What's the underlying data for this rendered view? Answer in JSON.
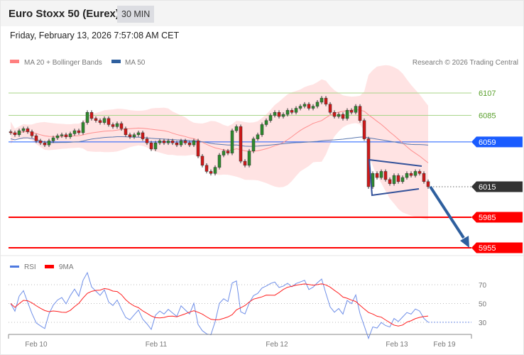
{
  "header": {
    "title": "Euro Stoxx 50 (Eurex)",
    "timeframe": "30 MIN",
    "datetime": "Friday, February 13, 2026 7:57:08 AM CET"
  },
  "legend": {
    "ma20": "MA 20 + Bollinger Bands",
    "ma50": "MA 50",
    "ma20_color": "#ff7f7f",
    "ma50_color": "#2e5f9e",
    "credit": "Research © 2026 Trading Central"
  },
  "rsi_legend": {
    "rsi": "RSI",
    "ma9": "9MA",
    "rsi_color": "#4f7ae0",
    "ma9_color": "#ff0000"
  },
  "levels": [
    {
      "value": 6107,
      "label": "6107",
      "kind": "resistance",
      "color": "#5aa02c"
    },
    {
      "value": 6085,
      "label": "6085",
      "kind": "resistance",
      "color": "#5aa02c"
    },
    {
      "value": 6059,
      "label": "6059",
      "kind": "pivot",
      "color": "#1a5cff"
    },
    {
      "value": 6015,
      "label": "6015",
      "kind": "last",
      "color": "#333333"
    },
    {
      "value": 5985,
      "label": "5985",
      "kind": "support",
      "color": "#ff0000"
    },
    {
      "value": 5955,
      "label": "5955",
      "kind": "support",
      "color": "#ff0000"
    }
  ],
  "chart_data": {
    "type": "candlestick",
    "closes": [
      6068,
      6066,
      6070,
      6072,
      6069,
      6065,
      6060,
      6058,
      6056,
      6060,
      6063,
      6065,
      6066,
      6064,
      6067,
      6070,
      6068,
      6078,
      6088,
      6082,
      6080,
      6078,
      6082,
      6076,
      6074,
      6077,
      6072,
      6066,
      6064,
      6066,
      6068,
      6062,
      6058,
      6052,
      6058,
      6060,
      6058,
      6060,
      6058,
      6056,
      6060,
      6058,
      6056,
      6060,
      6045,
      6036,
      6030,
      6028,
      6034,
      6046,
      6050,
      6048,
      6070,
      6074,
      6040,
      6036,
      6050,
      6062,
      6066,
      6076,
      6080,
      6085,
      6088,
      6084,
      6086,
      6090,
      6088,
      6092,
      6094,
      6096,
      6092,
      6094,
      6098,
      6102,
      6096,
      6088,
      6084,
      6086,
      6082,
      6090,
      6088,
      6094,
      6080,
      6062,
      6015,
      6028,
      6024,
      6030,
      6022,
      6018,
      6026,
      6020,
      6024,
      6028,
      6026,
      6030,
      6028,
      6020,
      6015
    ],
    "x_ticks": [
      "Feb 10",
      "Feb 11",
      "Feb 12",
      "Feb 13",
      "Feb 19"
    ],
    "rsi_ticks": [
      "70",
      "50",
      "30"
    ],
    "projection": {
      "from": 6015,
      "to": 5955
    }
  }
}
